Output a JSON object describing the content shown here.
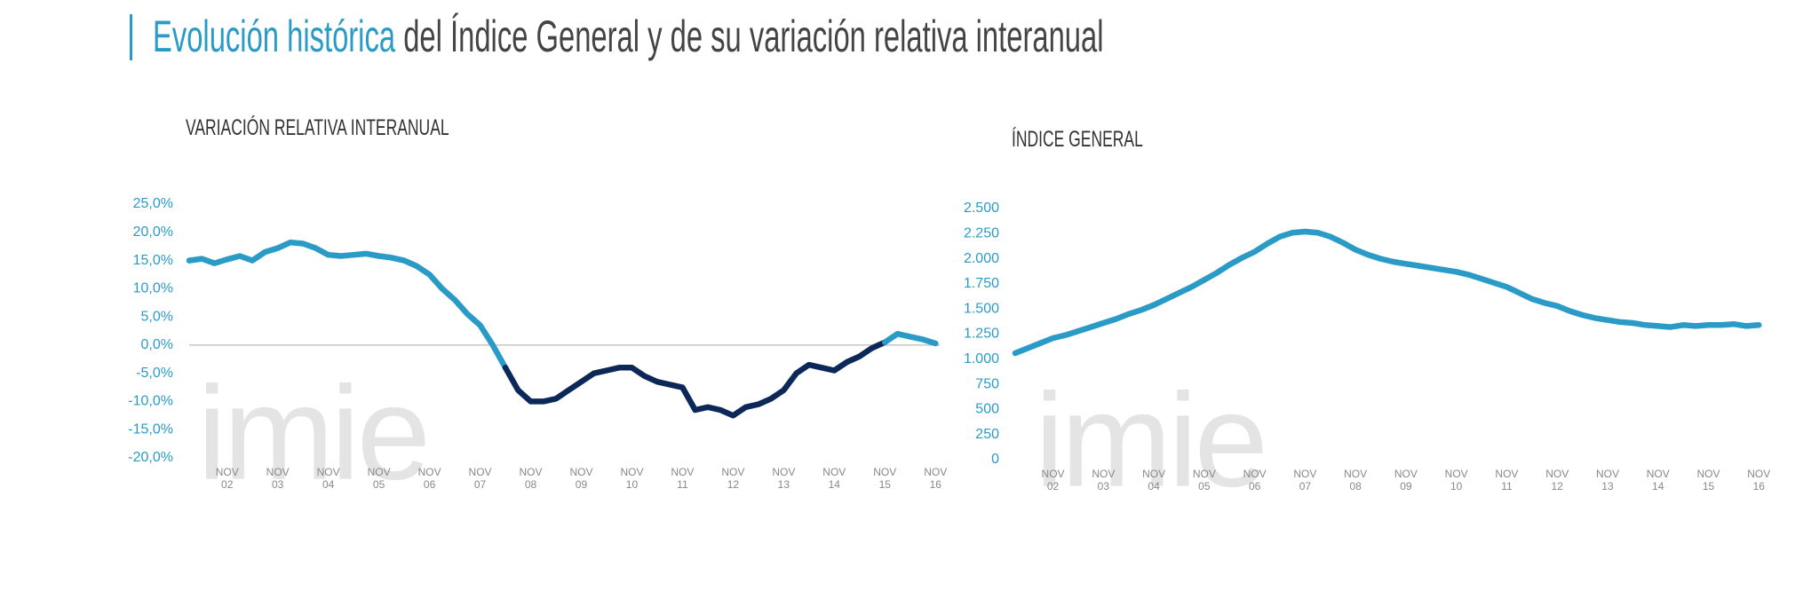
{
  "header": {
    "title_highlight": "Evolución histórica",
    "title_rest": "del Índice General y de su variación relativa interanual"
  },
  "chart_data": [
    {
      "type": "line",
      "title": "VARIACIÓN RELATIVA INTERANUAL",
      "watermark": "imie",
      "x": [
        "2002-02",
        "2002-05",
        "2002-08",
        "2002-11",
        "2003-02",
        "2003-05",
        "2003-08",
        "2003-11",
        "2004-02",
        "2004-05",
        "2004-08",
        "2004-11",
        "2005-02",
        "2005-05",
        "2005-08",
        "2005-11",
        "2006-02",
        "2006-05",
        "2006-08",
        "2006-11",
        "2007-02",
        "2007-05",
        "2007-08",
        "2007-11",
        "2008-02",
        "2008-05",
        "2008-08",
        "2008-11",
        "2009-02",
        "2009-05",
        "2009-08",
        "2009-11",
        "2010-02",
        "2010-05",
        "2010-08",
        "2010-11",
        "2011-02",
        "2011-05",
        "2011-08",
        "2011-11",
        "2012-02",
        "2012-05",
        "2012-08",
        "2012-11",
        "2013-02",
        "2013-05",
        "2013-08",
        "2013-11",
        "2014-02",
        "2014-05",
        "2014-08",
        "2014-11",
        "2015-02",
        "2015-05",
        "2015-08",
        "2015-11",
        "2016-02",
        "2016-05",
        "2016-08",
        "2016-11"
      ],
      "values": [
        15,
        15.3,
        14.5,
        15.2,
        15.8,
        15,
        16.5,
        17.2,
        18.2,
        18,
        17.2,
        16,
        15.8,
        16,
        16.2,
        15.8,
        15.5,
        15,
        14,
        12.5,
        10,
        8,
        5.5,
        3.5,
        0,
        -4,
        -8,
        -10,
        -10,
        -9.5,
        -8,
        -6.5,
        -5,
        -4.5,
        -4,
        -4,
        -5.5,
        -6.5,
        -7,
        -7.5,
        -11.5,
        -11,
        -11.5,
        -12.5,
        -11,
        -10.5,
        -9.5,
        -8,
        -5,
        -3.5,
        -4,
        -4.5,
        -3,
        -2,
        -0.5,
        0.5,
        2,
        1.5,
        1,
        0.3
      ],
      "color": "#2a9bc6",
      "negative_color": "#0b2859",
      "zero_line": true,
      "xlim": [
        "2002-02",
        "2016-12"
      ],
      "xticks": [
        {
          "value": "2002-11",
          "label": "NOV 02"
        },
        {
          "value": "2003-11",
          "label": "NOV 03"
        },
        {
          "value": "2004-11",
          "label": "NOV 04"
        },
        {
          "value": "2005-11",
          "label": "NOV 05"
        },
        {
          "value": "2006-11",
          "label": "NOV 06"
        },
        {
          "value": "2007-11",
          "label": "NOV 07"
        },
        {
          "value": "2008-11",
          "label": "NOV 08"
        },
        {
          "value": "2009-11",
          "label": "NOV 09"
        },
        {
          "value": "2010-11",
          "label": "NOV 10"
        },
        {
          "value": "2011-11",
          "label": "NOV 11"
        },
        {
          "value": "2012-11",
          "label": "NOV 12"
        },
        {
          "value": "2013-11",
          "label": "NOV 13"
        },
        {
          "value": "2014-11",
          "label": "NOV 14"
        },
        {
          "value": "2015-11",
          "label": "NOV 15"
        },
        {
          "value": "2016-11",
          "label": "NOV 16"
        }
      ],
      "ylim": [
        -20,
        25
      ],
      "yticks": [
        {
          "value": -20,
          "label": "-20,0%"
        },
        {
          "value": -15,
          "label": "-15,0%"
        },
        {
          "value": -10,
          "label": "-10,0%"
        },
        {
          "value": -5,
          "label": "-5,0%"
        },
        {
          "value": 0,
          "label": "0,0%"
        },
        {
          "value": 5,
          "label": "5,0%"
        },
        {
          "value": 10,
          "label": "10,0%"
        },
        {
          "value": 15,
          "label": "15,0%"
        },
        {
          "value": 20,
          "label": "20,0%"
        },
        {
          "value": 25,
          "label": "25,0%"
        }
      ]
    },
    {
      "type": "line",
      "title": "ÍNDICE GENERAL",
      "watermark": "imie",
      "x": [
        "2002-02",
        "2002-05",
        "2002-08",
        "2002-11",
        "2003-02",
        "2003-05",
        "2003-08",
        "2003-11",
        "2004-02",
        "2004-05",
        "2004-08",
        "2004-11",
        "2005-02",
        "2005-05",
        "2005-08",
        "2005-11",
        "2006-02",
        "2006-05",
        "2006-08",
        "2006-11",
        "2007-02",
        "2007-05",
        "2007-08",
        "2007-11",
        "2008-02",
        "2008-05",
        "2008-08",
        "2008-11",
        "2009-02",
        "2009-05",
        "2009-08",
        "2009-11",
        "2010-02",
        "2010-05",
        "2010-08",
        "2010-11",
        "2011-02",
        "2011-05",
        "2011-08",
        "2011-11",
        "2012-02",
        "2012-05",
        "2012-08",
        "2012-11",
        "2013-02",
        "2013-05",
        "2013-08",
        "2013-11",
        "2014-02",
        "2014-05",
        "2014-08",
        "2014-11",
        "2015-02",
        "2015-05",
        "2015-08",
        "2015-11",
        "2016-02",
        "2016-05",
        "2016-08",
        "2016-11"
      ],
      "values": [
        1060,
        1110,
        1160,
        1210,
        1240,
        1280,
        1320,
        1360,
        1400,
        1450,
        1490,
        1540,
        1600,
        1660,
        1720,
        1790,
        1860,
        1940,
        2010,
        2070,
        2150,
        2220,
        2260,
        2270,
        2260,
        2220,
        2160,
        2090,
        2040,
        2000,
        1970,
        1950,
        1930,
        1910,
        1890,
        1870,
        1840,
        1800,
        1760,
        1720,
        1660,
        1600,
        1560,
        1530,
        1480,
        1440,
        1410,
        1390,
        1370,
        1360,
        1340,
        1330,
        1320,
        1340,
        1330,
        1340,
        1340,
        1350,
        1330,
        1340
      ],
      "color": "#2a9bc6",
      "xlim": [
        "2002-02",
        "2016-12"
      ],
      "xticks": [
        {
          "value": "2002-11",
          "label": "NOV 02"
        },
        {
          "value": "2003-11",
          "label": "NOV 03"
        },
        {
          "value": "2004-11",
          "label": "NOV 04"
        },
        {
          "value": "2005-11",
          "label": "NOV 05"
        },
        {
          "value": "2006-11",
          "label": "NOV 06"
        },
        {
          "value": "2007-11",
          "label": "NOV 07"
        },
        {
          "value": "2008-11",
          "label": "NOV 08"
        },
        {
          "value": "2009-11",
          "label": "NOV 09"
        },
        {
          "value": "2010-11",
          "label": "NOV 10"
        },
        {
          "value": "2011-11",
          "label": "NOV 11"
        },
        {
          "value": "2012-11",
          "label": "NOV 12"
        },
        {
          "value": "2013-11",
          "label": "NOV 13"
        },
        {
          "value": "2014-11",
          "label": "NOV 14"
        },
        {
          "value": "2015-11",
          "label": "NOV 15"
        },
        {
          "value": "2016-11",
          "label": "NOV 16"
        }
      ],
      "ylim": [
        0,
        2500
      ],
      "yticks": [
        0,
        250,
        500,
        750,
        {
          "value": 1000,
          "label": "1.000"
        },
        {
          "value": 1250,
          "label": "1.250"
        },
        {
          "value": 1500,
          "label": "1.500"
        },
        {
          "value": 1750,
          "label": "1.750"
        },
        {
          "value": 2000,
          "label": "2.000"
        },
        {
          "value": 2250,
          "label": "2.250"
        },
        {
          "value": 2500,
          "label": "2.500"
        }
      ]
    }
  ]
}
